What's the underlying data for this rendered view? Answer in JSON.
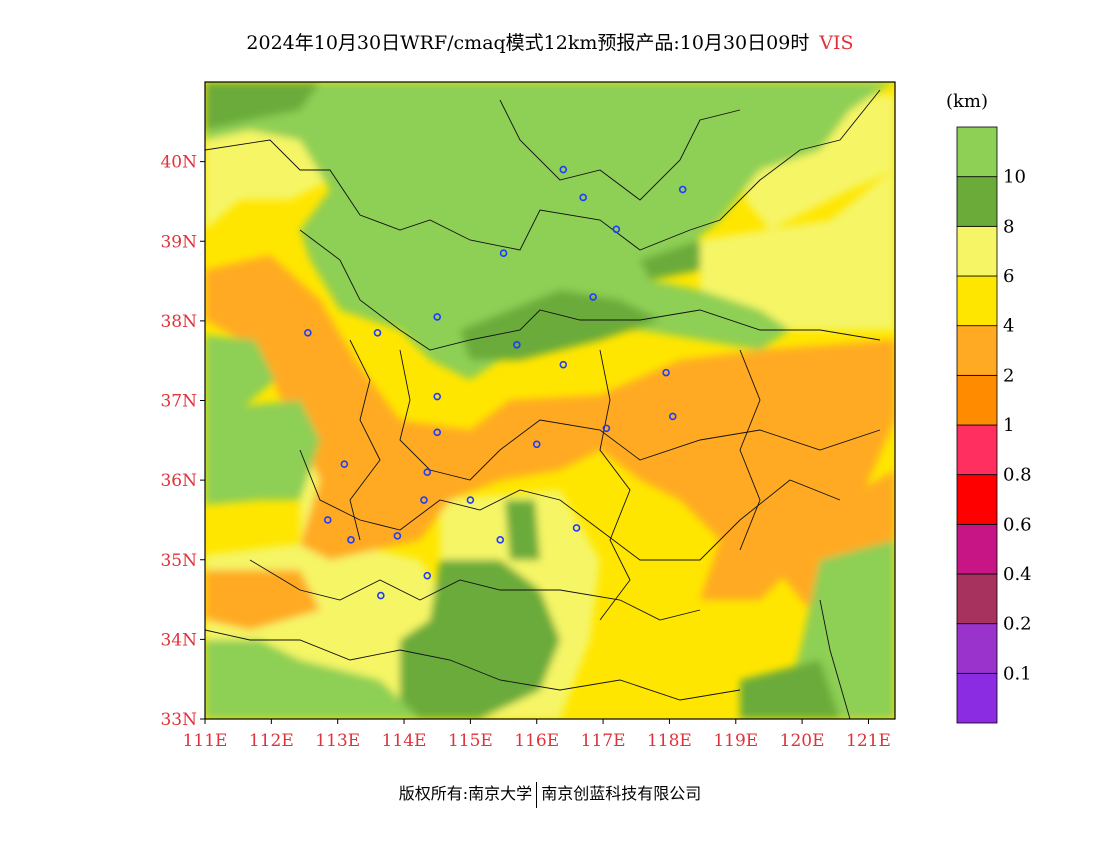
{
  "title": {
    "text": "2024年10月30日WRF/cmaq模式12km预报产品:10月30日09时",
    "variable": "VIS"
  },
  "map": {
    "lon_range": [
      111,
      121.4
    ],
    "lat_range": [
      33,
      41
    ],
    "x_ticks": [
      "111E",
      "112E",
      "113E",
      "114E",
      "115E",
      "116E",
      "117E",
      "118E",
      "119E",
      "120E",
      "121E"
    ],
    "y_ticks": [
      "33N",
      "34N",
      "35N",
      "36N",
      "37N",
      "38N",
      "39N",
      "40N"
    ],
    "background_color": "#f0e860",
    "stations": [
      [
        116.4,
        39.9
      ],
      [
        116.7,
        39.55
      ],
      [
        117.2,
        39.15
      ],
      [
        118.2,
        39.65
      ],
      [
        114.5,
        38.05
      ],
      [
        115.5,
        38.85
      ],
      [
        116.85,
        38.3
      ],
      [
        115.7,
        37.7
      ],
      [
        116.4,
        37.45
      ],
      [
        113.6,
        37.85
      ],
      [
        112.55,
        37.85
      ],
      [
        117.95,
        37.35
      ],
      [
        117.05,
        36.65
      ],
      [
        118.05,
        36.8
      ],
      [
        114.5,
        37.05
      ],
      [
        114.5,
        36.6
      ],
      [
        114.35,
        36.1
      ],
      [
        116.0,
        36.45
      ],
      [
        113.1,
        36.2
      ],
      [
        114.3,
        35.75
      ],
      [
        115.0,
        35.75
      ],
      [
        112.85,
        35.5
      ],
      [
        113.2,
        35.25
      ],
      [
        113.9,
        35.3
      ],
      [
        115.45,
        35.25
      ],
      [
        116.6,
        35.4
      ],
      [
        114.35,
        34.8
      ],
      [
        113.65,
        34.55
      ]
    ]
  },
  "colorbar": {
    "unit": "(km)",
    "colors": [
      "#8b2be2",
      "#9933cc",
      "#a8325e",
      "#c71585",
      "#ff0000",
      "#ff3060",
      "#ff8c00",
      "#ffaa22",
      "#ffe600",
      "#f5f566",
      "#6aab3a",
      "#8ecf55"
    ],
    "labels": [
      "0.1",
      "0.2",
      "0.4",
      "0.6",
      "0.8",
      "1",
      "2",
      "4",
      "6",
      "8",
      "10"
    ]
  },
  "footer": {
    "left": "版权所有:南京大学",
    "right": "南京创蓝科技有限公司"
  }
}
